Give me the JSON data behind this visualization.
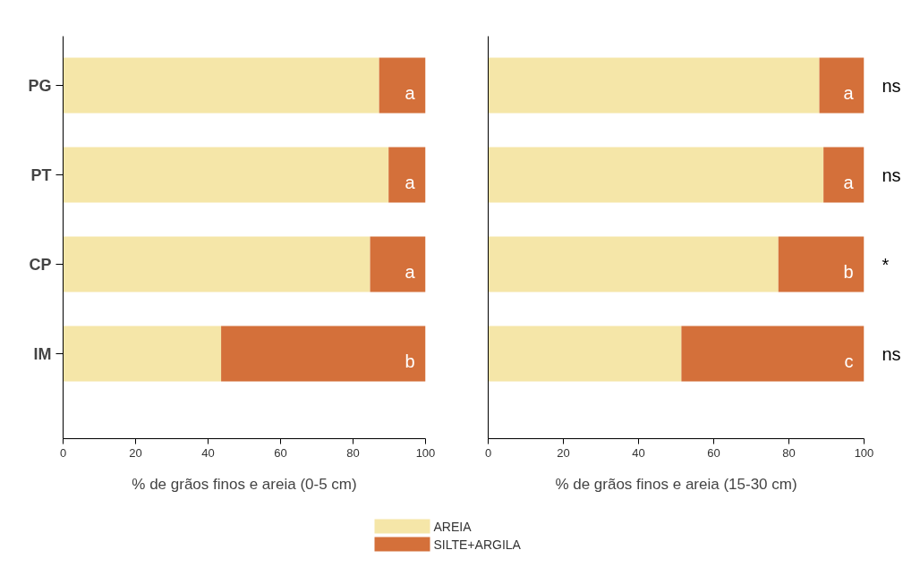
{
  "chart_data": [
    {
      "type": "bar",
      "orientation": "horizontal",
      "stacked": true,
      "categories": [
        "PG",
        "PT",
        "CP",
        "IM"
      ],
      "xlabel": "% de grãos finos e areia (0-5 cm)",
      "xlim": [
        0,
        100
      ],
      "xticks": [
        0,
        20,
        40,
        60,
        80,
        100
      ],
      "grid": false,
      "legend": "bottom",
      "series": [
        {
          "name": "AREIA",
          "color": "#f5e6a8",
          "values": [
            87.2,
            89.8,
            84.7,
            43.6
          ]
        },
        {
          "name": "SILTE+ARGILA",
          "color": "#d4703a",
          "values": [
            12.8,
            10.2,
            15.3,
            56.4
          ]
        }
      ],
      "annotations": [
        "a",
        "a",
        "a",
        "b"
      ]
    },
    {
      "type": "bar",
      "orientation": "horizontal",
      "stacked": true,
      "categories": [
        null,
        null,
        null,
        null
      ],
      "xlabel": "% de grãos finos e areia (15-30 cm)",
      "xlim": [
        0,
        100
      ],
      "xticks": [
        0,
        20,
        40,
        60,
        80,
        100
      ],
      "grid": false,
      "tick_labels": "x",
      "series": [
        {
          "color": "#f5e6a8",
          "values": [
            88.1,
            89.2,
            77.2,
            51.4
          ]
        },
        {
          "color": "#d4703a",
          "values": [
            11.9,
            10.8,
            22.8,
            48.6
          ]
        }
      ],
      "annotations": [
        "a",
        "a",
        "b",
        "c",
        "ns",
        "ns",
        "*",
        "ns"
      ]
    }
  ]
}
